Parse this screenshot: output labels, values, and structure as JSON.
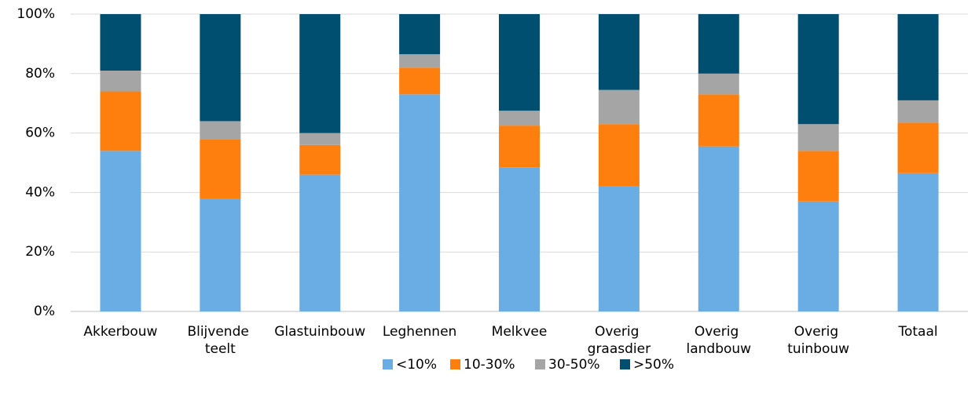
{
  "chart_data": {
    "type": "stacked_bar",
    "categories": [
      "Akkerbouw",
      "Blijvende teelt",
      "Glastuinbouw",
      "Leghennen",
      "Melkvee",
      "Overig graasdier",
      "Overig landbouw",
      "Overig tuinbouw",
      "Totaal"
    ],
    "series": [
      {
        "name": "<10%",
        "color": "#6aade4",
        "values": [
          54,
          38,
          46,
          73,
          48.5,
          42,
          55.5,
          37,
          46.5
        ]
      },
      {
        "name": "10-30%",
        "color": "#ff7f0e",
        "values": [
          20,
          20,
          10,
          9,
          14,
          21,
          17.5,
          17,
          17
        ]
      },
      {
        "name": "30-50%",
        "color": "#a5a5a5",
        "values": [
          7,
          6,
          4,
          4.5,
          5,
          11.5,
          7,
          9,
          7.5
        ]
      },
      {
        "name": ">50%",
        "color": "#004f71",
        "values": [
          19,
          36,
          40,
          13.5,
          32.5,
          25.5,
          20,
          37,
          29
        ]
      }
    ],
    "ylim": [
      0,
      100
    ],
    "yticks": [
      {
        "value": 0,
        "label": "0%"
      },
      {
        "value": 20,
        "label": "20%"
      },
      {
        "value": 40,
        "label": "40%"
      },
      {
        "value": 60,
        "label": "60%"
      },
      {
        "value": 80,
        "label": "80%"
      },
      {
        "value": 100,
        "label": "100%"
      }
    ],
    "grid": true,
    "legend": "bottom"
  }
}
